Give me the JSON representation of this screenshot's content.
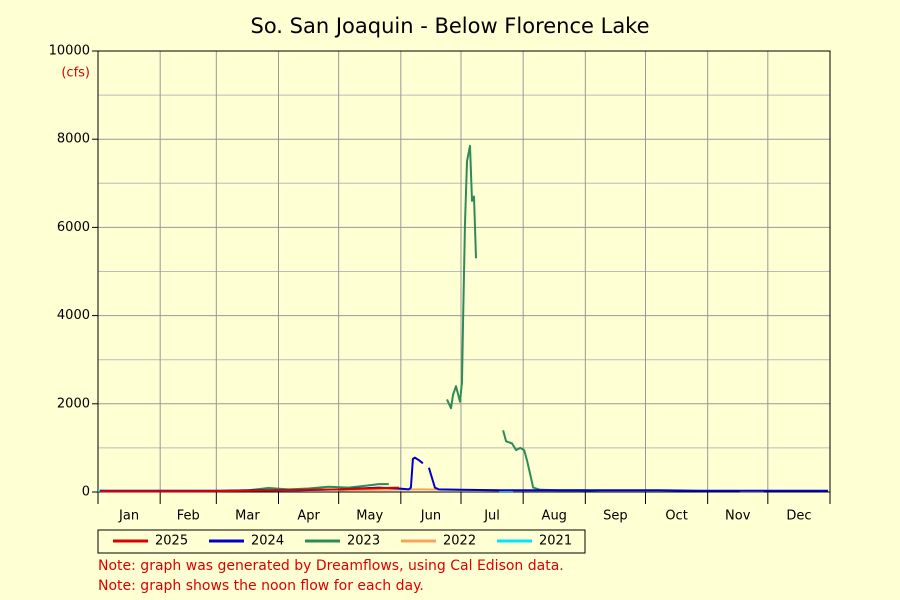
{
  "chart_data": {
    "type": "line",
    "title": "So. San Joaquin - Below Florence Lake",
    "y_unit": "(cfs)",
    "categories": [
      "Jan",
      "Feb",
      "Mar",
      "Apr",
      "May",
      "Jun",
      "Jul",
      "Aug",
      "Sep",
      "Oct",
      "Nov",
      "Dec"
    ],
    "xticks": [
      0,
      31,
      59,
      90,
      120,
      151,
      181,
      212,
      243,
      273,
      304,
      334,
      365
    ],
    "xlim": [
      0,
      365
    ],
    "ylim": [
      0,
      10000
    ],
    "yticks": [
      0,
      2000,
      4000,
      6000,
      8000,
      10000
    ],
    "minor_yticks": [
      1000,
      3000,
      5000,
      7000,
      9000
    ],
    "grid": true,
    "series": [
      {
        "name": "2025",
        "color": "#dd0000",
        "x": [
          1,
          15,
          30,
          45,
          60,
          75,
          90,
          105,
          120,
          135,
          150
        ],
        "values": [
          15,
          15,
          15,
          18,
          20,
          30,
          40,
          50,
          60,
          80,
          100
        ]
      },
      {
        "name": "2024",
        "color": "#0000cc",
        "x": [
          1,
          20,
          40,
          60,
          80,
          100,
          120,
          140,
          150,
          155,
          156,
          157,
          158,
          160,
          162,
          163,
          165,
          166,
          168,
          170,
          180,
          200,
          220,
          240,
          260,
          280,
          300,
          320,
          340,
          364
        ],
        "values": [
          30,
          30,
          30,
          30,
          40,
          40,
          60,
          100,
          80,
          60,
          100,
          750,
          780,
          720,
          650,
          null,
          550,
          400,
          100,
          60,
          50,
          40,
          40,
          40,
          40,
          40,
          30,
          30,
          30,
          30
        ]
      },
      {
        "name": "2023",
        "color": "#2e8b57",
        "x": [
          1,
          30,
          60,
          75,
          85,
          95,
          105,
          115,
          125,
          135,
          140,
          145,
          160,
          174,
          176,
          177,
          178.5,
          180.5,
          181.5,
          182,
          183,
          184,
          185.5,
          186.5,
          187.5,
          188.5,
          195,
          202,
          203.5,
          206.5,
          208.5,
          210.5,
          212.5,
          214,
          215.5,
          217,
          220.5,
          230,
          240,
          250
        ],
        "values": [
          20,
          20,
          20,
          40,
          90,
          60,
          80,
          120,
          100,
          150,
          180,
          180,
          null,
          2100,
          1900,
          2200,
          2400,
          2050,
          2500,
          3800,
          6100,
          7500,
          7850,
          6600,
          6700,
          5300,
          null,
          1400,
          1150,
          1100,
          950,
          1000,
          950,
          700,
          400,
          100,
          50,
          40,
          40,
          30
        ]
      },
      {
        "name": "2022",
        "color": "#f4a460",
        "x": [
          120,
          140,
          160,
          180,
          200,
          205,
          320,
          332
        ],
        "values": [
          40,
          50,
          60,
          50,
          40,
          null,
          20,
          20
        ]
      },
      {
        "name": "2021",
        "color": "#00e5ff",
        "x": [
          0,
          3,
          5,
          200,
          207
        ],
        "values": [
          30,
          30,
          null,
          20,
          20
        ]
      }
    ],
    "notes": [
      "Note: graph was generated by Dreamflows, using Cal Edison data.",
      "Note: graph shows the noon flow for each day."
    ]
  }
}
